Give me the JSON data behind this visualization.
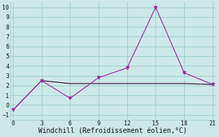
{
  "line1_x": [
    0,
    3,
    6,
    9,
    12,
    15,
    18,
    21
  ],
  "line1_y": [
    -0.5,
    2.5,
    0.7,
    2.8,
    3.8,
    10.0,
    3.3,
    2.1
  ],
  "line2_x": [
    0,
    3,
    6,
    9,
    12,
    15,
    18,
    21
  ],
  "line2_y": [
    -0.5,
    2.5,
    2.2,
    2.2,
    2.2,
    2.2,
    2.2,
    2.1
  ],
  "line1_color": "#9b30a0",
  "line2_color": "#2a002a",
  "marker_color": "#9b30a0",
  "bg_color": "#cce8e8",
  "grid_color": "#99cccc",
  "xlabel": "Windchill (Refroidissement éolien,°C)",
  "xlabel_fontsize": 7,
  "tick_fontsize": 6,
  "xticks": [
    0,
    3,
    6,
    9,
    12,
    15,
    18,
    21
  ],
  "yticks": [
    -1,
    0,
    1,
    2,
    3,
    4,
    5,
    6,
    7,
    8,
    9,
    10
  ],
  "ylim": [
    -1.5,
    10.5
  ],
  "xlim": [
    -0.3,
    21.3
  ]
}
